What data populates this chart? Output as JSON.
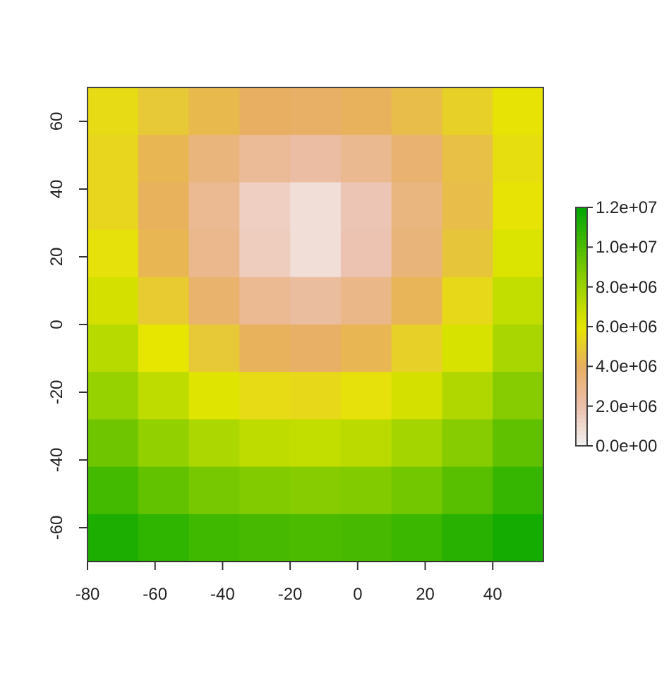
{
  "chart_data": {
    "type": "heatmap",
    "xlim": [
      -80,
      55
    ],
    "xticks": [
      -80,
      -60,
      -40,
      -20,
      0,
      20,
      40
    ],
    "ylim": [
      -70,
      70
    ],
    "yticks": [
      -60,
      -40,
      -20,
      0,
      20,
      40,
      60
    ],
    "clim": [
      0,
      12000000
    ],
    "cticks": [
      {
        "value": 0,
        "label": "0.0e+00"
      },
      {
        "value": 2000000,
        "label": "2.0e+06"
      },
      {
        "value": 4000000,
        "label": "4.0e+06"
      },
      {
        "value": 6000000,
        "label": "6.0e+06"
      },
      {
        "value": 8000000,
        "label": "8.0e+06"
      },
      {
        "value": 10000000,
        "label": "1.0e+07"
      },
      {
        "value": 12000000,
        "label": "1.2e+07"
      }
    ],
    "cells": [
      [
        5600000,
        4900000,
        4400000,
        4000000,
        3900000,
        4100000,
        4500000,
        5200000,
        5900000
      ],
      [
        5400000,
        4300000,
        3300000,
        2600000,
        2300000,
        2800000,
        3600000,
        4600000,
        5700000
      ],
      [
        5400000,
        4100000,
        2700000,
        1400000,
        800000,
        1800000,
        3200000,
        4500000,
        5900000
      ],
      [
        5800000,
        4300000,
        2900000,
        1500000,
        800000,
        1900000,
        3400000,
        4800000,
        6300000
      ],
      [
        6500000,
        5000000,
        3700000,
        2700000,
        2400000,
        3000000,
        4200000,
        5500000,
        7000000
      ],
      [
        7300000,
        6000000,
        4900000,
        4100000,
        3900000,
        4300000,
        5200000,
        6400000,
        7700000
      ],
      [
        8200000,
        7100000,
        6200000,
        5600000,
        5500000,
        5800000,
        6500000,
        7500000,
        8600000
      ],
      [
        9200000,
        8300000,
        7600000,
        7100000,
        7000000,
        7200000,
        7800000,
        8600000,
        9600000
      ],
      [
        10300000,
        9500000,
        9000000,
        8700000,
        8600000,
        8700000,
        9100000,
        9800000,
        10600000
      ],
      [
        11300000,
        10800000,
        10400000,
        10200000,
        10100000,
        10200000,
        10500000,
        11000000,
        11500000
      ]
    ]
  }
}
